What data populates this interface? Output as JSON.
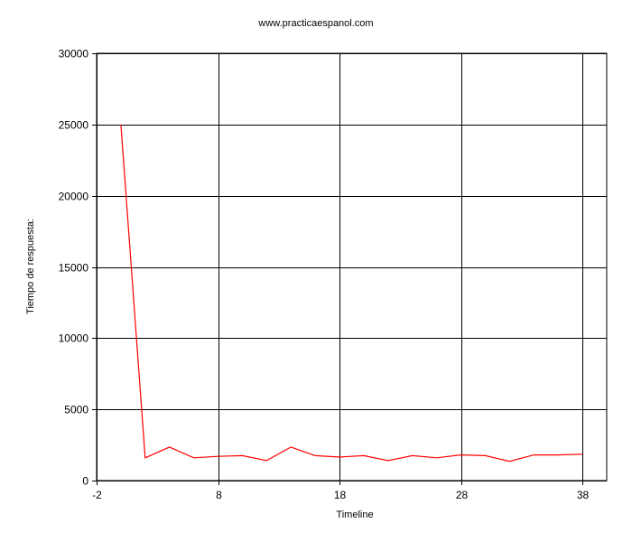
{
  "chart_data": {
    "type": "line",
    "title": "www.practicaespanol.com",
    "xlabel": "Timeline",
    "ylabel": "Tiempo de respuesta:",
    "xlim": [
      -2,
      40
    ],
    "ylim": [
      0,
      30000
    ],
    "x_ticks": [
      -2,
      8,
      18,
      28,
      38
    ],
    "y_ticks": [
      0,
      5000,
      10000,
      15000,
      20000,
      25000,
      30000
    ],
    "grid": true,
    "line_color": "#ff0000",
    "grid_color": "#000000",
    "series": [
      {
        "x": [
          0,
          2,
          4,
          6,
          8,
          10,
          12,
          14,
          16,
          18,
          20,
          22,
          24,
          26,
          28,
          30,
          32,
          34,
          36,
          38
        ],
        "y": [
          25000,
          1600,
          2350,
          1600,
          1700,
          1750,
          1400,
          2350,
          1750,
          1650,
          1750,
          1400,
          1750,
          1600,
          1800,
          1750,
          1350,
          1800,
          1800,
          1850
        ]
      }
    ]
  }
}
